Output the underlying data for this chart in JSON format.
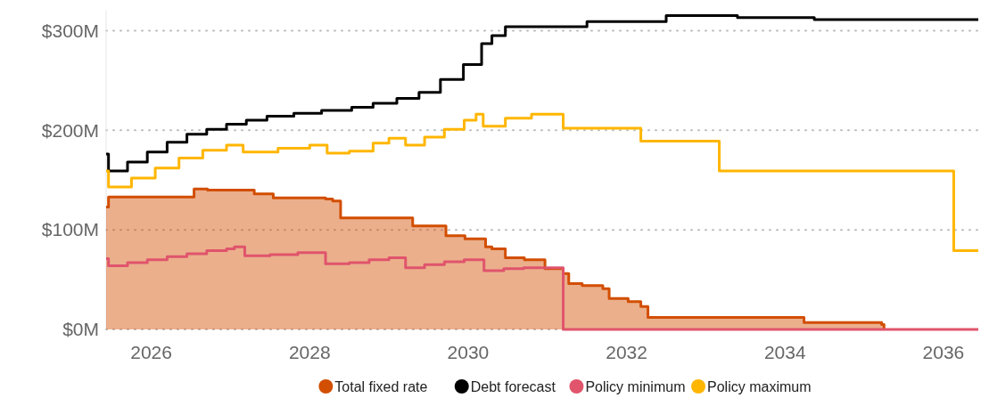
{
  "chart_data": {
    "type": "step",
    "xlim": [
      2025.43,
      2036.44
    ],
    "ylim": [
      0,
      320
    ],
    "xticks": [
      2026,
      2028,
      2030,
      2032,
      2034,
      2036
    ],
    "yticks": [
      {
        "value": 0,
        "label": "$0M"
      },
      {
        "value": 100,
        "label": "$100M"
      },
      {
        "value": 200,
        "label": "$200M"
      },
      {
        "value": 300,
        "label": "$300M"
      }
    ],
    "grid": "y",
    "legend": "bottom",
    "series": [
      {
        "name": "Total fixed rate",
        "type": "area",
        "color": "#d24e01",
        "x": [
          2025.43,
          2025.46,
          2026.54,
          2026.71,
          2027.3,
          2027.54,
          2028.2,
          2028.29,
          2028.39,
          2029.3,
          2029.72,
          2029.96,
          2030.22,
          2030.3,
          2030.47,
          2030.71,
          2030.97,
          2031.2,
          2031.27,
          2031.44,
          2031.7,
          2031.78,
          2032.02,
          2032.18,
          2032.27,
          2034.24,
          2035.22,
          2035.25
        ],
        "values": [
          123,
          133,
          141,
          140,
          136,
          132,
          131,
          129,
          112,
          104,
          94,
          91,
          83,
          81,
          72,
          70,
          61,
          56,
          46,
          44,
          41,
          31,
          28,
          23,
          12,
          7,
          5,
          0
        ]
      },
      {
        "name": "Debt forecast",
        "color": "#000000",
        "x": [
          2025.43,
          2025.46,
          2025.7,
          2025.95,
          2026.2,
          2026.45,
          2026.7,
          2026.95,
          2027.2,
          2027.46,
          2027.8,
          2028.15,
          2028.53,
          2028.8,
          2029.1,
          2029.38,
          2029.65,
          2029.94,
          2030.17,
          2030.3,
          2030.47,
          2031.5,
          2032.5,
          2033.4,
          2034.37,
          2036.44
        ],
        "values": [
          176,
          159,
          168,
          178,
          188,
          196,
          201,
          206,
          210,
          214,
          217,
          220,
          223,
          227,
          232,
          238,
          251,
          266,
          287,
          295,
          304,
          309,
          315,
          313,
          311,
          311
        ]
      },
      {
        "name": "Policy minimum",
        "color": "#e0546c",
        "x": [
          2025.43,
          2025.46,
          2025.7,
          2025.95,
          2026.2,
          2026.45,
          2026.7,
          2026.95,
          2027.05,
          2027.18,
          2027.5,
          2027.85,
          2028.2,
          2028.5,
          2028.75,
          2029.0,
          2029.21,
          2029.45,
          2029.7,
          2029.95,
          2030.2,
          2030.45,
          2030.7,
          2031.2,
          2036.44
        ],
        "values": [
          71,
          64,
          67,
          70,
          73,
          76,
          79,
          81,
          83,
          74,
          75,
          77,
          66,
          67,
          70,
          72,
          62,
          65,
          68,
          70,
          59,
          61,
          62,
          0,
          0
        ]
      },
      {
        "name": "Policy maximum",
        "color": "#ffb600",
        "x": [
          2025.43,
          2025.46,
          2025.75,
          2026.05,
          2026.35,
          2026.65,
          2026.95,
          2027.16,
          2027.6,
          2028.0,
          2028.22,
          2028.5,
          2028.8,
          2029.0,
          2029.21,
          2029.45,
          2029.7,
          2029.95,
          2030.1,
          2030.19,
          2030.47,
          2030.8,
          2031.2,
          2032.18,
          2033.17,
          2036.13,
          2036.44
        ],
        "values": [
          159,
          143,
          152,
          162,
          172,
          180,
          185,
          178,
          182,
          185,
          177,
          179,
          187,
          192,
          185,
          193,
          201,
          210,
          216,
          204,
          212,
          216,
          202,
          189,
          159,
          79,
          79
        ]
      }
    ]
  }
}
